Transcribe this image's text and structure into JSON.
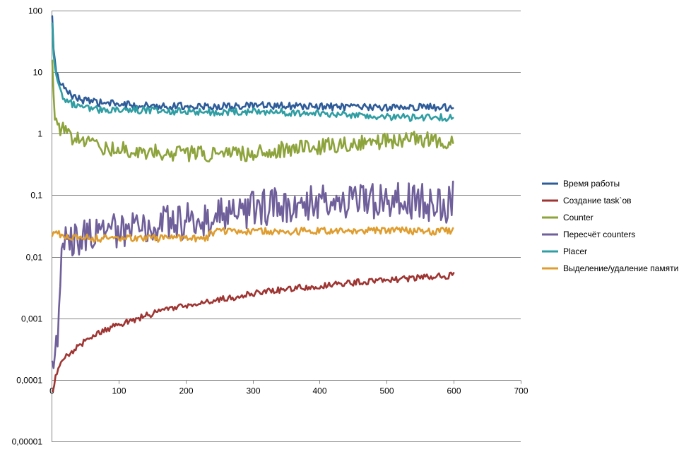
{
  "chart_data": {
    "type": "line",
    "title": "",
    "xlabel": "",
    "ylabel": "",
    "y_scale": "log",
    "xlim": [
      0,
      700
    ],
    "ylim": [
      1e-05,
      100
    ],
    "x_ticks": [
      "0",
      "100",
      "200",
      "300",
      "400",
      "500",
      "600",
      "700"
    ],
    "y_ticks": [
      "0,00001",
      "0,0001",
      "0,001",
      "0,01",
      "0,1",
      "1",
      "10",
      "100"
    ],
    "grid": "horizontal",
    "legend_position": "right",
    "series": [
      {
        "name": "Время работы",
        "color": "#2E5C99",
        "x": [
          1,
          2,
          3,
          5,
          8,
          12,
          18,
          25,
          35,
          50,
          70,
          100,
          130,
          160,
          200,
          240,
          280,
          320,
          360,
          400,
          440,
          480,
          520,
          560,
          600
        ],
        "y": [
          75,
          45,
          25,
          15,
          9,
          7,
          5.5,
          4.6,
          4.0,
          3.4,
          3.2,
          3.0,
          2.9,
          2.85,
          2.8,
          2.75,
          2.8,
          2.85,
          2.8,
          2.75,
          2.7,
          2.65,
          2.7,
          2.7,
          2.7
        ],
        "noise": 0.06
      },
      {
        "name": "Создание task`ов",
        "color": "#9E3532",
        "x": [
          2,
          4,
          6,
          10,
          15,
          25,
          40,
          60,
          80,
          100,
          130,
          160,
          200,
          250,
          300,
          350,
          400,
          450,
          500,
          550,
          600
        ],
        "y": [
          6e-05,
          8e-05,
          0.00011,
          0.00015,
          0.0002,
          0.00026,
          0.00036,
          0.0005,
          0.00065,
          0.0008,
          0.001,
          0.0013,
          0.0016,
          0.002,
          0.0025,
          0.003,
          0.0034,
          0.0038,
          0.0042,
          0.0046,
          0.005
        ],
        "noise": 0.05
      },
      {
        "name": "Counter",
        "color": "#8DA33B",
        "x": [
          1,
          2,
          3,
          5,
          8,
          12,
          18,
          25,
          35,
          50,
          70,
          100,
          130,
          160,
          200,
          240,
          280,
          320,
          360,
          400,
          440,
          480,
          520,
          560,
          600
        ],
        "y": [
          12,
          6,
          3.5,
          2.2,
          1.6,
          1.3,
          1.1,
          0.95,
          0.85,
          0.72,
          0.62,
          0.56,
          0.52,
          0.5,
          0.48,
          0.45,
          0.47,
          0.52,
          0.58,
          0.62,
          0.68,
          0.72,
          0.78,
          0.82,
          0.75
        ],
        "noise": 0.13
      },
      {
        "name": "Пересчёт counters",
        "color": "#6F5F9A",
        "x": [
          1,
          3,
          5,
          8,
          10,
          12,
          14,
          16,
          18,
          20,
          25,
          30,
          40,
          60,
          80,
          100,
          150,
          200,
          250,
          300,
          350,
          400,
          450,
          500,
          550,
          590,
          600
        ],
        "y": [
          0.0001,
          0.00025,
          0.00035,
          0.0005,
          0.0007,
          0.0015,
          0.01,
          0.016,
          0.017,
          0.015,
          0.018,
          0.02,
          0.021,
          0.023,
          0.025,
          0.027,
          0.032,
          0.038,
          0.045,
          0.06,
          0.07,
          0.085,
          0.085,
          0.08,
          0.078,
          0.07,
          0.1
        ],
        "noise": 0.3
      },
      {
        "name": "Placer",
        "color": "#2F9EA3",
        "x": [
          1,
          2,
          3,
          5,
          8,
          12,
          18,
          25,
          35,
          50,
          70,
          100,
          130,
          160,
          200,
          240,
          280,
          320,
          360,
          400,
          440,
          480,
          520,
          560,
          600
        ],
        "y": [
          70,
          38,
          20,
          12,
          7,
          5.2,
          4.0,
          3.3,
          2.9,
          2.6,
          2.5,
          2.45,
          2.4,
          2.35,
          2.3,
          2.25,
          2.3,
          2.3,
          2.2,
          2.1,
          2.0,
          1.95,
          1.85,
          1.8,
          1.85
        ],
        "noise": 0.06
      },
      {
        "name": "Выделение/удаление памяти",
        "color": "#DF9D2F",
        "x": [
          1,
          10,
          20,
          40,
          60,
          80,
          100,
          150,
          200,
          230,
          240,
          250,
          300,
          350,
          400,
          450,
          500,
          550,
          600
        ],
        "y": [
          0.024,
          0.023,
          0.022,
          0.021,
          0.02,
          0.02,
          0.02,
          0.02,
          0.02,
          0.02,
          0.025,
          0.026,
          0.026,
          0.026,
          0.026,
          0.027,
          0.027,
          0.026,
          0.026
        ],
        "noise": 0.06
      }
    ]
  }
}
